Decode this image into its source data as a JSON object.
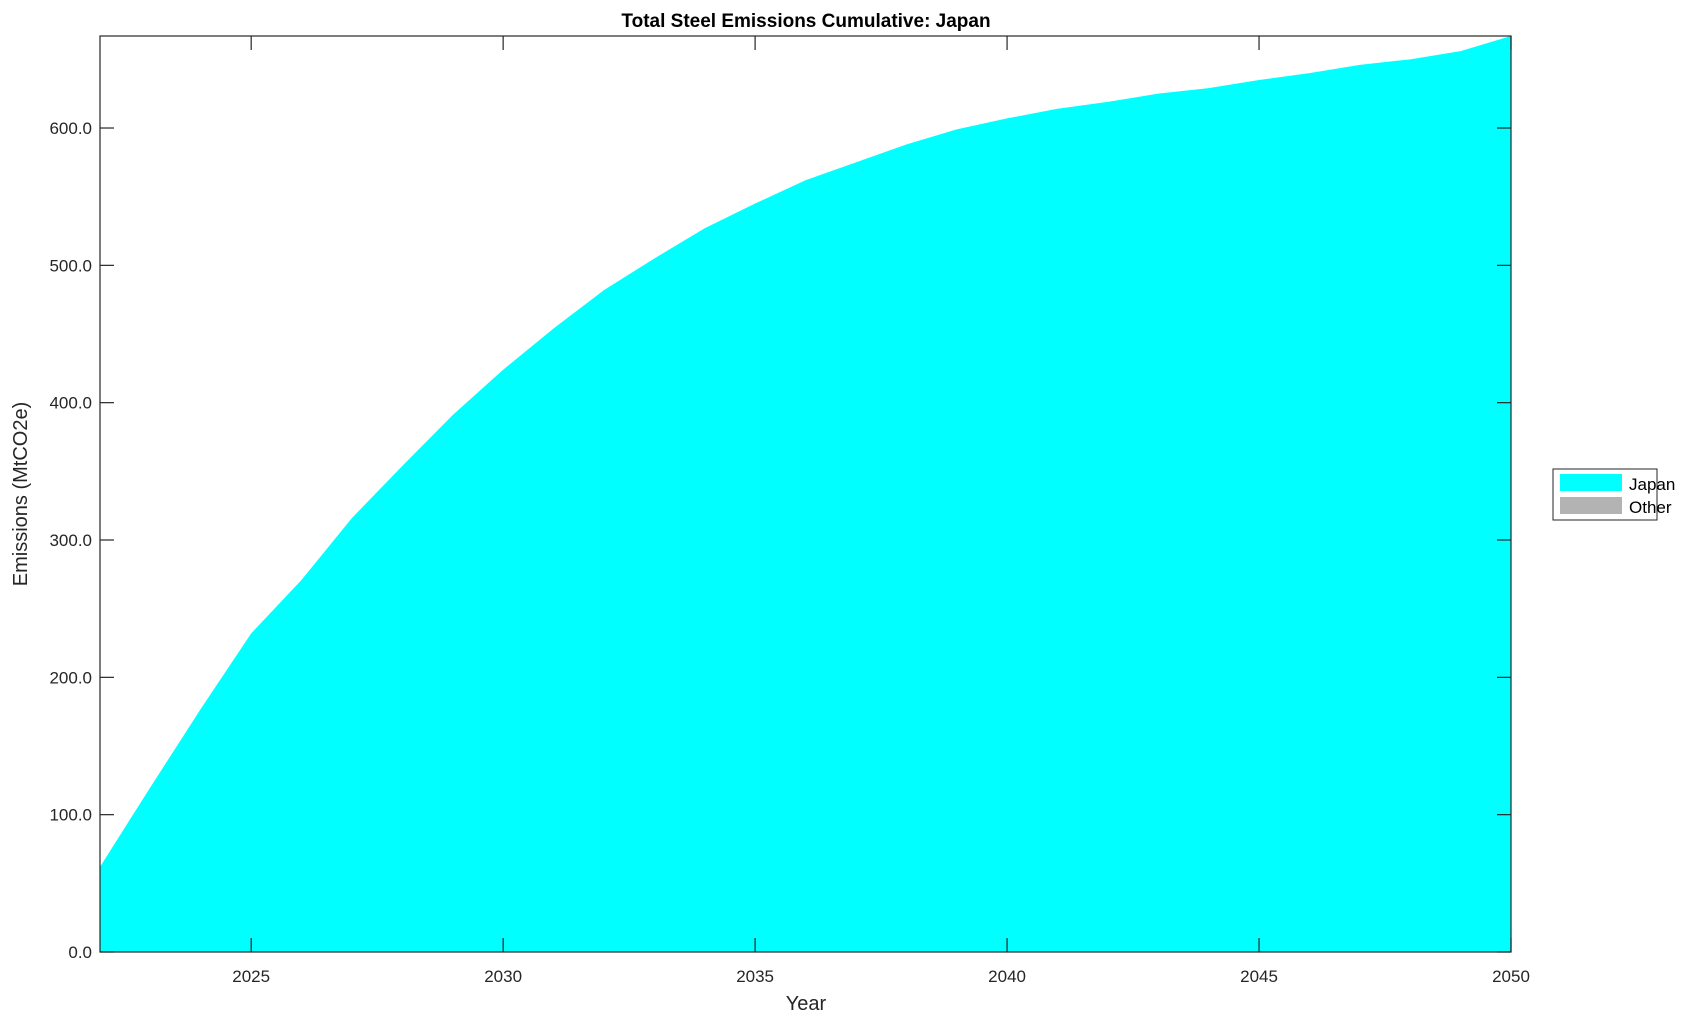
{
  "chart_data": {
    "type": "area",
    "title": "Total Steel Emissions Cumulative: Japan",
    "xlabel": "Year",
    "ylabel": "Emissions (MtCO2e)",
    "xlim": [
      2022,
      2050
    ],
    "ylim": [
      0,
      667
    ],
    "xticks": [
      2025,
      2030,
      2035,
      2040,
      2045,
      2050
    ],
    "xtick_labels": [
      "2025",
      "2030",
      "2035",
      "2040",
      "2045",
      "2050"
    ],
    "yticks": [
      0,
      100,
      200,
      300,
      400,
      500,
      600
    ],
    "ytick_labels": [
      "0.0",
      "100.0",
      "200.0",
      "300.0",
      "400.0",
      "500.0",
      "600.0"
    ],
    "grid": false,
    "legend_placement": "outside-right",
    "x": [
      2022,
      2023,
      2024,
      2025,
      2026,
      2027,
      2028,
      2029,
      2030,
      2031,
      2032,
      2033,
      2034,
      2035,
      2036,
      2037,
      2038,
      2039,
      2040,
      2041,
      2042,
      2043,
      2044,
      2045,
      2046,
      2047,
      2048,
      2049,
      2050
    ],
    "series": [
      {
        "name": "Japan",
        "color": "#00FFFF",
        "values": [
          62,
          120,
          177,
          232,
          271,
          316,
          354,
          391,
          424,
          454,
          482,
          505,
          527,
          545,
          562,
          575,
          588,
          599,
          607,
          614,
          619,
          625,
          629,
          635,
          640,
          646,
          650,
          656,
          667
        ]
      },
      {
        "name": "Other",
        "color": "#B3B3B3",
        "values": [
          0,
          0,
          0,
          0,
          0,
          0,
          0,
          0,
          0,
          0,
          0,
          0,
          0,
          0,
          0,
          0,
          0,
          0,
          0,
          0,
          0,
          0,
          0,
          0,
          0,
          0,
          0,
          0,
          0
        ]
      }
    ]
  }
}
